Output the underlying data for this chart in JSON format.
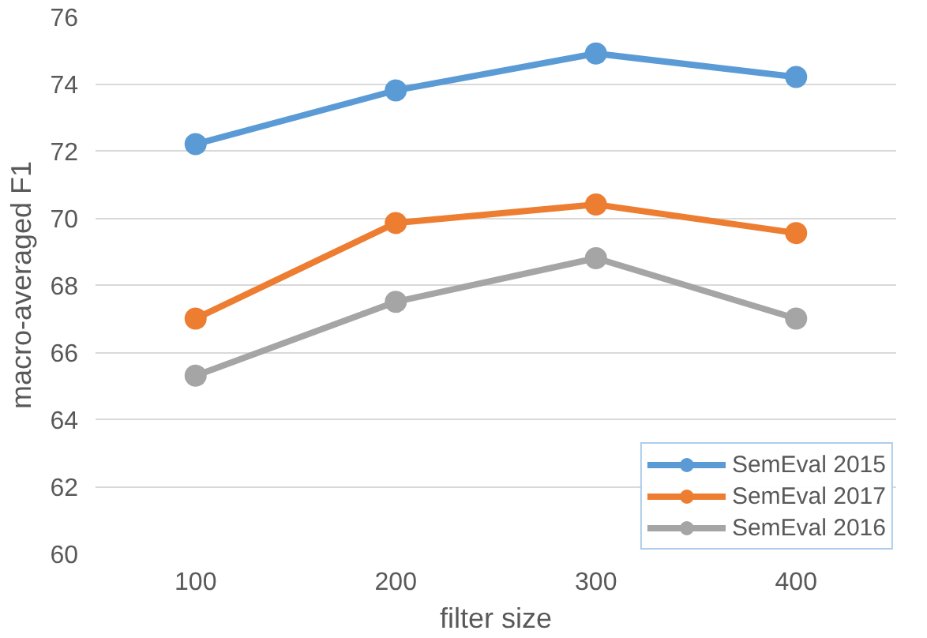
{
  "chart_data": {
    "type": "line",
    "xlabel": "filter size",
    "ylabel": "macro-averaged F1",
    "categories": [
      "100",
      "200",
      "300",
      "400"
    ],
    "series": [
      {
        "name": "SemEval 2015",
        "color": "#5b9bd5",
        "values": [
          72.2,
          73.8,
          74.9,
          74.2
        ]
      },
      {
        "name": "SemEval 2017",
        "color": "#ed7d31",
        "values": [
          67.0,
          69.85,
          70.4,
          69.55
        ]
      },
      {
        "name": "SemEval 2016",
        "color": "#a5a5a5",
        "values": [
          65.3,
          67.5,
          68.8,
          67.0
        ]
      }
    ],
    "ylim": [
      60,
      76
    ],
    "yticks": [
      60,
      62,
      64,
      66,
      68,
      70,
      72,
      74,
      76
    ],
    "grid": "y",
    "legend": "bottom right",
    "marker": "circle",
    "line_style": "solid"
  }
}
